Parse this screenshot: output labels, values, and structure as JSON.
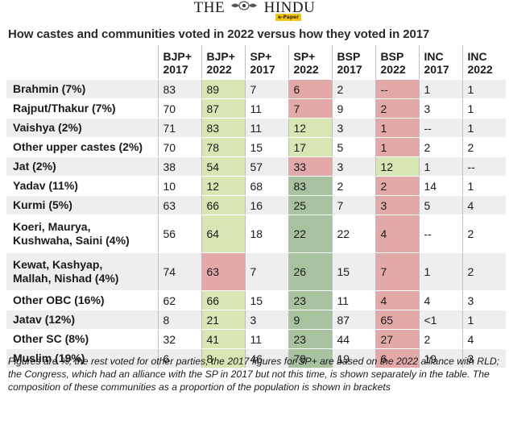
{
  "masthead": {
    "name": "THE HINDU",
    "left_word": "THE",
    "right_word": "HINDU",
    "tag": "e-Paper"
  },
  "chart_data": {
    "type": "table",
    "title": "How castes and communities voted in 2022 versus how they voted in 2017",
    "columns": [
      {
        "line1": "BJP+",
        "line2": "2017"
      },
      {
        "line1": "BJP+",
        "line2": "2022"
      },
      {
        "line1": "SP+",
        "line2": "2017"
      },
      {
        "line1": "SP+",
        "line2": "2022"
      },
      {
        "line1": "BSP",
        "line2": "2017"
      },
      {
        "line1": "BSP",
        "line2": "2022"
      },
      {
        "line1": "INC",
        "line2": "2017"
      },
      {
        "line1": "INC",
        "line2": "2022"
      }
    ],
    "rows": [
      {
        "label": [
          "Brahmin (7%)"
        ],
        "values": [
          "83",
          "89",
          "7",
          "6",
          "2",
          "--",
          "1",
          "1"
        ],
        "shade": [
          "",
          "lg",
          "",
          "pk",
          "",
          "pk",
          "",
          ""
        ]
      },
      {
        "label": [
          "Rajput/Thakur (7%)"
        ],
        "values": [
          "70",
          "87",
          "11",
          "7",
          "9",
          "2",
          "3",
          "1"
        ],
        "shade": [
          "",
          "lg",
          "",
          "pk",
          "",
          "pk",
          "",
          ""
        ]
      },
      {
        "label": [
          "Vaishya (2%)"
        ],
        "values": [
          "71",
          "83",
          "11",
          "12",
          "3",
          "1",
          "--",
          "1"
        ],
        "shade": [
          "",
          "lg",
          "",
          "lg",
          "",
          "pk",
          "",
          ""
        ]
      },
      {
        "label": [
          "Other upper castes (2%)"
        ],
        "values": [
          "70",
          "78",
          "15",
          "17",
          "5",
          "1",
          "2",
          "2"
        ],
        "shade": [
          "",
          "lg",
          "",
          "lg",
          "",
          "pk",
          "",
          ""
        ]
      },
      {
        "label": [
          "Jat (2%)"
        ],
        "values": [
          "38",
          "54",
          "57",
          "33",
          "3",
          "12",
          "1",
          "--"
        ],
        "shade": [
          "",
          "lg",
          "",
          "pk",
          "",
          "lg",
          "",
          ""
        ]
      },
      {
        "label": [
          "Yadav (11%)"
        ],
        "values": [
          "10",
          "12",
          "68",
          "83",
          "2",
          "2",
          "14",
          "1"
        ],
        "shade": [
          "",
          "lg",
          "",
          "dg",
          "",
          "pk",
          "",
          ""
        ]
      },
      {
        "label": [
          "Kurmi (5%)"
        ],
        "values": [
          "63",
          "66",
          "16",
          "25",
          "7",
          "3",
          "5",
          "4"
        ],
        "shade": [
          "",
          "lg",
          "",
          "dg",
          "",
          "pk",
          "",
          ""
        ]
      },
      {
        "label": [
          "Koeri, Maurya,",
          "Kushwaha, Saini (4%)"
        ],
        "values": [
          "56",
          "64",
          "18",
          "22",
          "22",
          "4",
          "--",
          "2"
        ],
        "shade": [
          "",
          "lg",
          "",
          "dg",
          "",
          "pk",
          "",
          ""
        ]
      },
      {
        "label": [
          "Kewat, Kashyap,",
          "Mallah, Nishad (4%)"
        ],
        "values": [
          "74",
          "63",
          "7",
          "26",
          "15",
          "7",
          "1",
          "2"
        ],
        "shade": [
          "",
          "pk",
          "",
          "dg",
          "",
          "pk",
          "",
          ""
        ]
      },
      {
        "label": [
          "Other OBC (16%)"
        ],
        "values": [
          "62",
          "66",
          "15",
          "23",
          "11",
          "4",
          "4",
          "3"
        ],
        "shade": [
          "",
          "lg",
          "",
          "dg",
          "",
          "pk",
          "",
          ""
        ]
      },
      {
        "label": [
          "Jatav (12%)"
        ],
        "values": [
          "8",
          "21",
          "3",
          "9",
          "87",
          "65",
          "<1",
          "1"
        ],
        "shade": [
          "",
          "lg",
          "",
          "dg",
          "",
          "pk",
          "",
          ""
        ]
      },
      {
        "label": [
          "Other SC (8%)"
        ],
        "values": [
          "32",
          "41",
          "11",
          "23",
          "44",
          "27",
          "2",
          "4"
        ],
        "shade": [
          "",
          "lg",
          "",
          "dg",
          "",
          "pk",
          "",
          ""
        ]
      },
      {
        "label": [
          "Muslim (19%)"
        ],
        "values": [
          "6",
          "8",
          "46",
          "79",
          "19",
          "6",
          "19",
          "3"
        ],
        "shade": [
          "",
          "lg",
          "",
          "dg",
          "",
          "pk",
          "",
          ""
        ]
      }
    ],
    "colors": {
      "lg": "#d7e6b2",
      "dg": "#a8c2a0",
      "pk": "#e3a9a9",
      "stripe": "#eeeeee"
    },
    "footnote": "Figures are %; the rest voted for other parties; the 2017 figures for SP+ are based on the 2022 alliance with RLD; the Congress, which had an alliance with the SP in 2017 but not this time, is shown separately in the table. The composition of these communities as a proportion of the population is shown in brackets"
  }
}
